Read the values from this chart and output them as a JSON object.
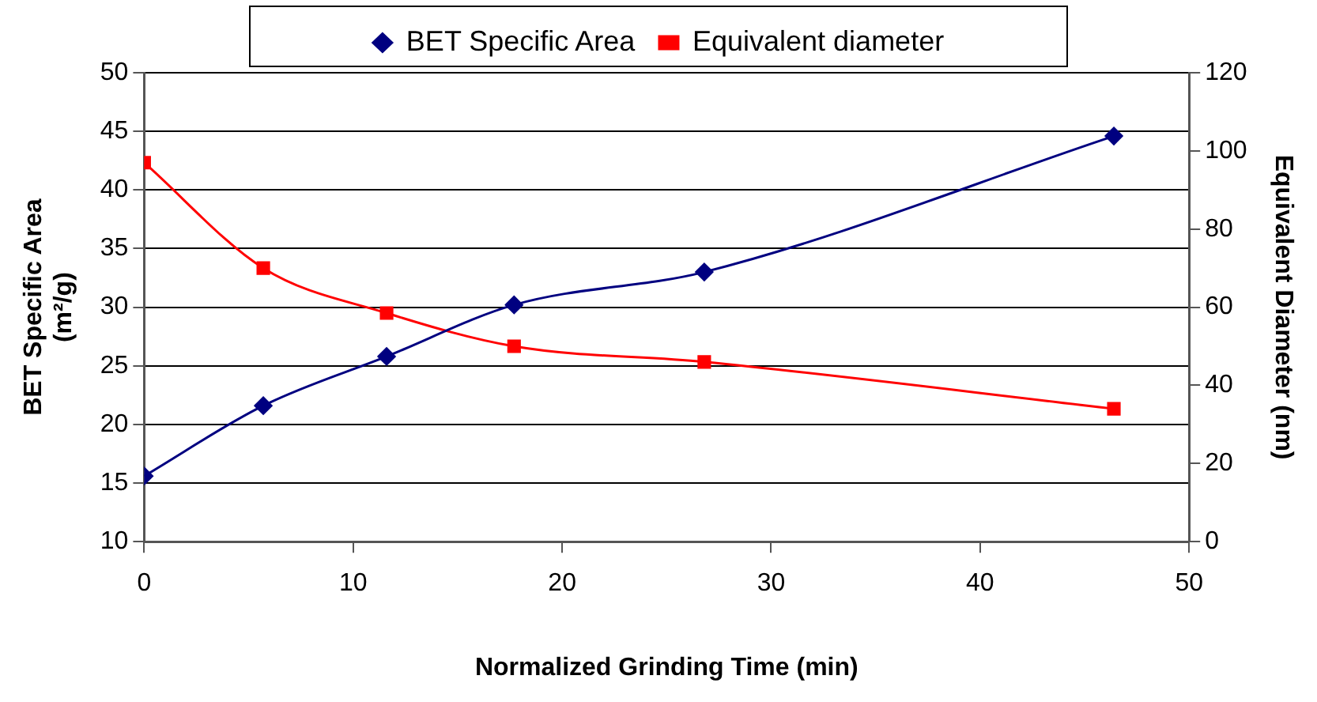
{
  "chart_data": {
    "type": "line",
    "xlabel": "Normalized Grinding Time (min)",
    "ylabel": "BET Specific Area\n(m²/g)",
    "y2label": "Equivalent Diameter (nm)",
    "x": [
      0,
      5.7,
      11.6,
      17.7,
      26.8,
      46.4
    ],
    "series": [
      {
        "name": "BET Specific Area",
        "color": "#000080",
        "marker": "diamond",
        "values": [
          15.6,
          21.6,
          25.8,
          30.2,
          33.0,
          44.6
        ]
      },
      {
        "name": "Equivalent diameter",
        "color": "#ff0000",
        "marker": "square",
        "axis": "y2",
        "values": [
          97,
          70,
          58.5,
          50,
          46,
          34
        ]
      }
    ],
    "xlim": [
      0,
      50
    ],
    "xticks": [
      0,
      10,
      20,
      30,
      40,
      50
    ],
    "ylim": [
      10,
      50
    ],
    "yticks": [
      10,
      15,
      20,
      25,
      30,
      35,
      40,
      45,
      50
    ],
    "y2lim": [
      0,
      120
    ],
    "y2ticks": [
      0,
      20,
      40,
      60,
      80,
      100,
      120
    ],
    "grid": "y",
    "legend": "top"
  }
}
